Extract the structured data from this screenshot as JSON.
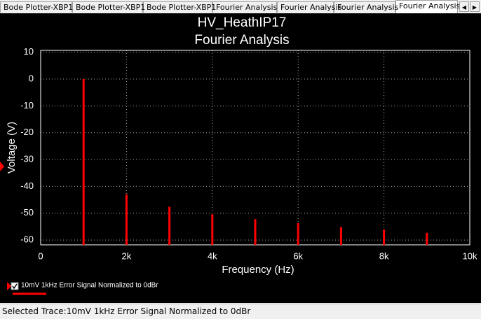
{
  "tabs": [
    "Bode Plotter-XBP1",
    "Bode Plotter-XBP1",
    "Bode Plotter-XBP1",
    "Fourier Analysis",
    "Fourier Analysis",
    "Fourier Analysis",
    "Fourier Analysis"
  ],
  "active_tab": 6,
  "status_bar": {
    "text": "Selected Trace:10mV 1kHz Error Signal Normalized to 0dBr"
  },
  "chart_data": {
    "type": "bar",
    "title": "HV_HeathIP17",
    "subtitle": "Fourier Analysis",
    "x_label": "Frequency (Hz)",
    "y_label": "Voltage (V)",
    "x": [
      1000,
      2000,
      3000,
      4000,
      5000,
      6000,
      7000,
      8000,
      9000
    ],
    "series": [
      {
        "name": "10mV 1kHz Error Signal Normalized to 0dBr",
        "color": "#ff0000",
        "values": [
          0,
          -43,
          -47.6,
          -50.4,
          -52.2,
          -53.7,
          -55.2,
          -56.2,
          -57.3
        ]
      }
    ],
    "xlim": [
      0,
      10000
    ],
    "xticks": [
      0,
      {
        "value": 2000,
        "label": "2k"
      },
      {
        "value": 4000,
        "label": "4k"
      },
      {
        "value": 6000,
        "label": "6k"
      },
      {
        "value": 8000,
        "label": "8k"
      },
      {
        "value": 10000,
        "label": "10k"
      }
    ],
    "ylim": [
      -61.8,
      10.7
    ],
    "yticks": [
      10,
      0,
      -10,
      -20,
      -30,
      -40,
      -50,
      -60
    ],
    "grid": true
  }
}
